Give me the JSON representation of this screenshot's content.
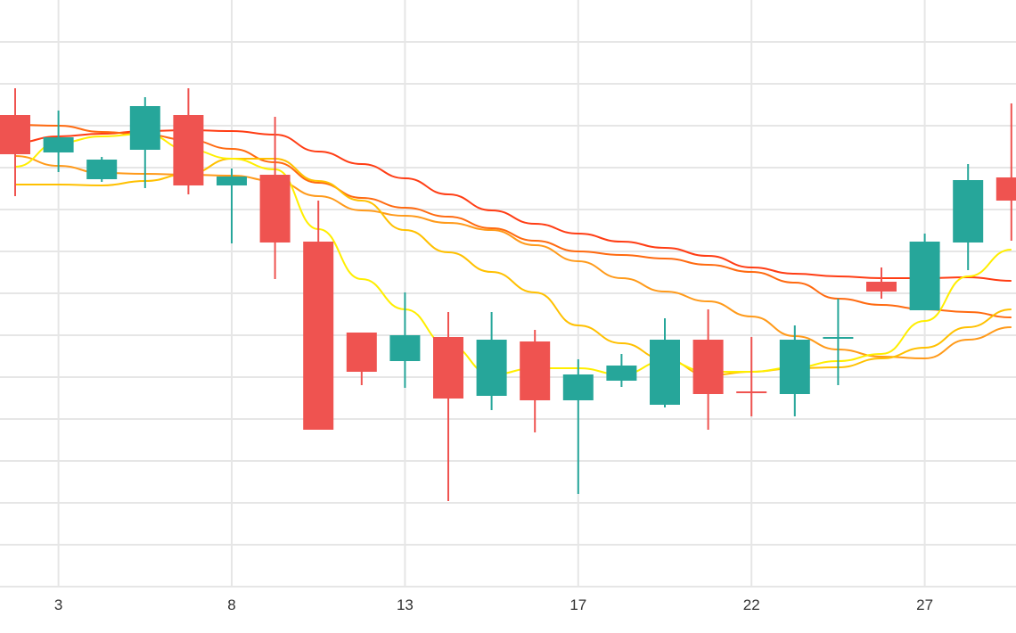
{
  "chart_data": {
    "type": "candlestick",
    "title": "",
    "xlabel": "",
    "ylabel": "",
    "ylim": [
      0,
      140
    ],
    "grid": true,
    "x_tick_labels": [
      {
        "index": 1,
        "label": "3"
      },
      {
        "index": 5,
        "label": "8"
      },
      {
        "index": 9,
        "label": "13"
      },
      {
        "index": 13,
        "label": "17"
      },
      {
        "index": 17,
        "label": "22"
      },
      {
        "index": 21,
        "label": "27"
      }
    ],
    "colors": {
      "up": "#26a69a",
      "down": "#ef5350",
      "grid": "#e6e6e6"
    },
    "candles": [
      {
        "o": 114.2,
        "h": 120.2,
        "l": 96.0,
        "c": 105.4
      },
      {
        "o": 105.8,
        "h": 115.2,
        "l": 101.4,
        "c": 109.2
      },
      {
        "o": 99.8,
        "h": 104.8,
        "l": 99.2,
        "c": 104.2
      },
      {
        "o": 106.4,
        "h": 118.2,
        "l": 97.8,
        "c": 116.2
      },
      {
        "o": 114.2,
        "h": 120.2,
        "l": 96.4,
        "c": 98.4
      },
      {
        "o": 98.4,
        "h": 102.2,
        "l": 85.4,
        "c": 100.4
      },
      {
        "o": 100.8,
        "h": 113.8,
        "l": 77.4,
        "c": 85.6
      },
      {
        "o": 85.8,
        "h": 95.0,
        "l": 43.6,
        "c": 43.6
      },
      {
        "o": 65.4,
        "h": 65.4,
        "l": 53.6,
        "c": 56.6
      },
      {
        "o": 59.0,
        "h": 74.4,
        "l": 53.0,
        "c": 64.8
      },
      {
        "o": 64.4,
        "h": 70.0,
        "l": 27.6,
        "c": 50.6
      },
      {
        "o": 51.2,
        "h": 70.0,
        "l": 48.0,
        "c": 63.8
      },
      {
        "o": 63.4,
        "h": 66.0,
        "l": 43.0,
        "c": 50.2
      },
      {
        "o": 50.2,
        "h": 59.4,
        "l": 29.2,
        "c": 56.0
      },
      {
        "o": 54.6,
        "h": 60.6,
        "l": 53.2,
        "c": 58.0
      },
      {
        "o": 49.2,
        "h": 68.6,
        "l": 48.6,
        "c": 63.8
      },
      {
        "o": 63.8,
        "h": 70.6,
        "l": 43.6,
        "c": 51.6
      },
      {
        "o": 52.2,
        "h": 64.4,
        "l": 46.6,
        "c": 51.8
      },
      {
        "o": 51.6,
        "h": 67.0,
        "l": 46.6,
        "c": 63.8
      },
      {
        "o": 64.0,
        "h": 73.0,
        "l": 53.6,
        "c": 64.4
      },
      {
        "o": 76.8,
        "h": 80.0,
        "l": 73.0,
        "c": 74.6
      },
      {
        "o": 70.4,
        "h": 87.6,
        "l": 70.4,
        "c": 85.8
      },
      {
        "o": 85.6,
        "h": 103.2,
        "l": 79.4,
        "c": 99.6
      },
      {
        "o": 100.2,
        "h": 116.8,
        "l": 86.0,
        "c": 95.0
      }
    ],
    "series": [
      {
        "name": "ma-red",
        "color": "#ff3d14",
        "values": [
          108,
          109.4,
          110,
          110.6,
          110.8,
          110.6,
          109.8,
          106,
          103.2,
          100,
          96.4,
          92.8,
          89.8,
          87.6,
          85.8,
          84.4,
          82.6,
          80,
          78.6,
          78,
          77.6,
          77.6,
          77.8,
          77
        ]
      },
      {
        "name": "ma-dark-orange",
        "color": "#ff6a10",
        "values": [
          112,
          111.8,
          110.4,
          109.8,
          108.6,
          106.6,
          103.6,
          99,
          95.6,
          93.4,
          91.4,
          88.8,
          86,
          83.6,
          82.8,
          82,
          80.6,
          79,
          76.6,
          73,
          71.6,
          70.6,
          70,
          68.8
        ]
      },
      {
        "name": "ma-orange",
        "color": "#ff9a1a",
        "values": [
          105,
          102.8,
          101.2,
          101,
          100.8,
          100.6,
          99.4,
          96,
          92.8,
          91.6,
          90,
          88.4,
          85,
          81.4,
          77.6,
          74.6,
          72.4,
          69,
          64.6,
          61.6,
          60,
          59.6,
          63.8,
          66.6
        ]
      },
      {
        "name": "ma-amber",
        "color": "#ffc000",
        "values": [
          98.6,
          98.6,
          98.4,
          99.4,
          101,
          104.4,
          104.4,
          99.4,
          95,
          88.4,
          83.4,
          79,
          74.4,
          67,
          63,
          59.4,
          55.8,
          56.6,
          57.4,
          57.6,
          59.6,
          62,
          66.6,
          70.6
        ]
      },
      {
        "name": "ma-yellow",
        "color": "#ffee00",
        "values": [
          102.6,
          108,
          109.4,
          110,
          106.4,
          104.4,
          102,
          88.6,
          77.4,
          70.6,
          62.6,
          56,
          57.4,
          57.4,
          56,
          59,
          56.6,
          56.6,
          57.6,
          59,
          60.6,
          68,
          78,
          84
        ]
      }
    ]
  }
}
